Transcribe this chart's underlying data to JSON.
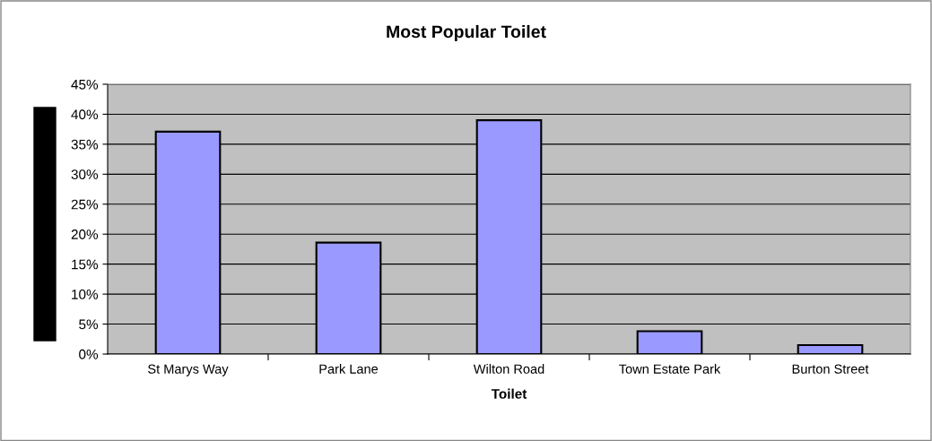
{
  "chart_data": {
    "type": "bar",
    "title": "Most Popular Toilet",
    "xlabel": "Toilet",
    "categories": [
      "St Marys Way",
      "Park Lane",
      "Wilton Road",
      "Town Estate Park",
      "Burton Street"
    ],
    "values": [
      37.1,
      18.6,
      39.0,
      3.8,
      1.5
    ],
    "color": "#9999ff",
    "ylim": [
      0,
      45
    ],
    "yticks": [
      {
        "value": 0,
        "label": "0%"
      },
      {
        "value": 5,
        "label": "5%"
      },
      {
        "value": 10,
        "label": "10%"
      },
      {
        "value": 15,
        "label": "15%"
      },
      {
        "value": 20,
        "label": "20%"
      },
      {
        "value": 25,
        "label": "25%"
      },
      {
        "value": 30,
        "label": "30%"
      },
      {
        "value": 35,
        "label": "35%"
      },
      {
        "value": 40,
        "label": "40%"
      },
      {
        "value": 45,
        "label": "45%"
      }
    ],
    "grid": "y",
    "legend": false
  }
}
